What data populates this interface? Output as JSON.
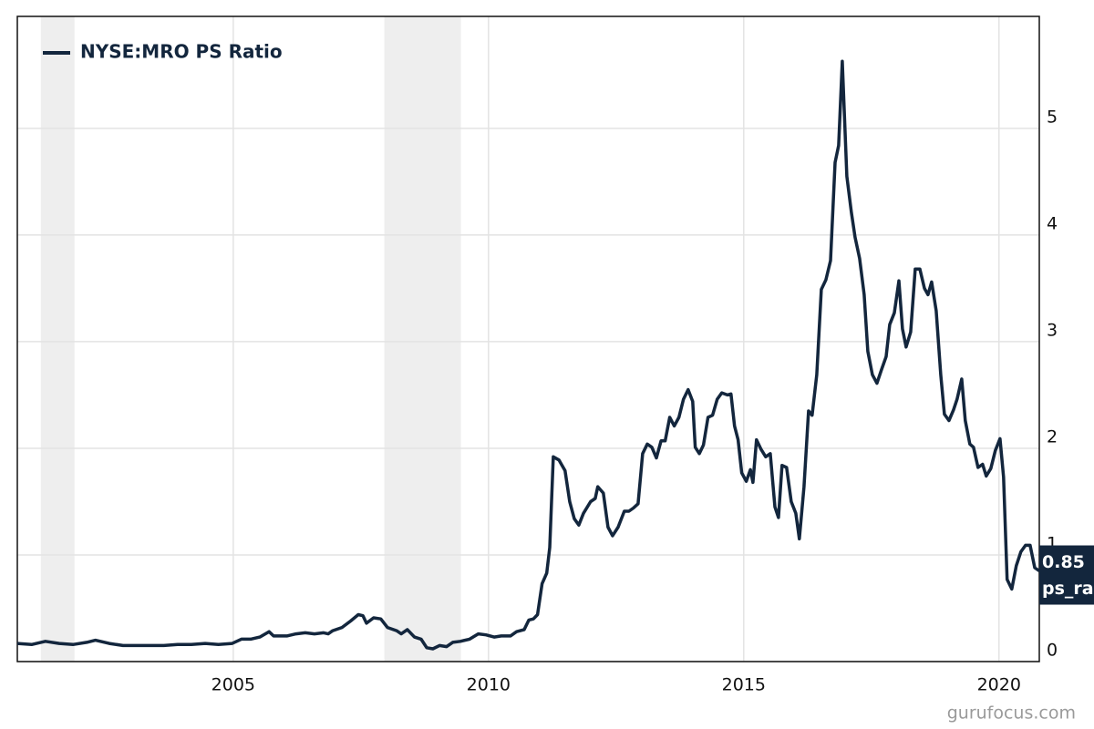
{
  "chart_data": {
    "type": "line",
    "series": [
      {
        "name": "NYSE:MRO PS Ratio",
        "color": "#13263d",
        "values": [
          0.17,
          0.16,
          0.19,
          0.17,
          0.16,
          0.18,
          0.2,
          0.17,
          0.15,
          0.15,
          0.15,
          0.15,
          0.16,
          0.16,
          0.17,
          0.16,
          0.17,
          0.21,
          0.21,
          0.23,
          0.28,
          0.24,
          0.24,
          0.26,
          0.27,
          0.26,
          0.27,
          0.26,
          0.29,
          0.32,
          0.38,
          0.44,
          0.43,
          0.36,
          0.41,
          0.4,
          0.32,
          0.29,
          0.26,
          0.3,
          0.23,
          0.21,
          0.13,
          0.12,
          0.15,
          0.14,
          0.18,
          0.19,
          0.21,
          0.26,
          0.25,
          0.23,
          0.24,
          0.24,
          0.28,
          0.3,
          0.39,
          0.4,
          0.44,
          0.73,
          0.83,
          1.07,
          1.92,
          1.89,
          1.79,
          1.5,
          1.34,
          1.28,
          1.39,
          1.5,
          1.53,
          1.64,
          1.58,
          1.26,
          1.18,
          1.26,
          1.41,
          1.41,
          1.44,
          1.48,
          1.95,
          2.04,
          2.01,
          1.91,
          2.07,
          2.07,
          2.29,
          2.21,
          2.29,
          2.46,
          2.55,
          2.44,
          2.01,
          1.95,
          2.03,
          2.29,
          2.31,
          2.46,
          2.52,
          2.5,
          2.51,
          2.21,
          2.08,
          1.77,
          1.69,
          1.8,
          1.68,
          2.08,
          1.99,
          1.92,
          1.95,
          1.45,
          1.35,
          1.84,
          1.82,
          1.5,
          1.39,
          1.15,
          1.64,
          2.35,
          2.31,
          2.69,
          3.49,
          3.58,
          3.76,
          4.68,
          4.84,
          5.63,
          4.55,
          4.21,
          3.98,
          3.78,
          3.44,
          2.91,
          2.69,
          2.61,
          2.74,
          2.86,
          3.16,
          3.27,
          3.57,
          3.12,
          2.95,
          3.09,
          3.68,
          3.68,
          3.5,
          3.44,
          3.56,
          3.29,
          2.69,
          2.32,
          2.26,
          2.36,
          2.46,
          2.65,
          2.26,
          2.04,
          2.01,
          1.82,
          1.85,
          1.74,
          1.81,
          1.98,
          2.09,
          1.73,
          0.77,
          0.68,
          0.9,
          1.03,
          1.09,
          1.09,
          0.88,
          0.85
        ]
      }
    ],
    "x": [
      2000.77,
      2001.05,
      2001.32,
      2001.59,
      2001.86,
      2002.13,
      2002.3,
      2002.57,
      2002.84,
      2003.11,
      2003.38,
      2003.64,
      2003.91,
      2004.18,
      2004.45,
      2004.71,
      2004.98,
      2005.16,
      2005.34,
      2005.52,
      2005.7,
      2005.79,
      2006.05,
      2006.23,
      2006.41,
      2006.59,
      2006.77,
      2006.86,
      2006.95,
      2007.13,
      2007.3,
      2007.45,
      2007.54,
      2007.61,
      2007.75,
      2007.89,
      2008.02,
      2008.2,
      2008.29,
      2008.41,
      2008.55,
      2008.68,
      2008.79,
      2008.91,
      2009.04,
      2009.18,
      2009.3,
      2009.45,
      2009.63,
      2009.8,
      2009.95,
      2010.11,
      2010.25,
      2010.43,
      2010.55,
      2010.7,
      2010.79,
      2010.88,
      2010.96,
      2011.05,
      2011.14,
      2011.2,
      2011.27,
      2011.38,
      2011.5,
      2011.59,
      2011.68,
      2011.77,
      2011.86,
      2012.0,
      2012.09,
      2012.14,
      2012.25,
      2012.34,
      2012.43,
      2012.54,
      2012.66,
      2012.75,
      2012.84,
      2012.93,
      2013.02,
      2013.11,
      2013.2,
      2013.29,
      2013.38,
      2013.46,
      2013.55,
      2013.64,
      2013.73,
      2013.82,
      2013.91,
      2014.0,
      2014.05,
      2014.13,
      2014.21,
      2014.3,
      2014.39,
      2014.48,
      2014.57,
      2014.68,
      2014.75,
      2014.82,
      2014.89,
      2014.96,
      2015.05,
      2015.13,
      2015.18,
      2015.25,
      2015.34,
      2015.43,
      2015.52,
      2015.61,
      2015.68,
      2015.75,
      2015.84,
      2015.93,
      2016.02,
      2016.09,
      2016.18,
      2016.27,
      2016.34,
      2016.43,
      2016.52,
      2016.61,
      2016.7,
      2016.79,
      2016.86,
      2016.93,
      2017.02,
      2017.11,
      2017.18,
      2017.27,
      2017.36,
      2017.43,
      2017.52,
      2017.61,
      2017.7,
      2017.79,
      2017.86,
      2017.95,
      2018.04,
      2018.11,
      2018.18,
      2018.27,
      2018.36,
      2018.45,
      2018.54,
      2018.61,
      2018.68,
      2018.77,
      2018.86,
      2018.93,
      2019.02,
      2019.11,
      2019.18,
      2019.27,
      2019.34,
      2019.43,
      2019.5,
      2019.59,
      2019.68,
      2019.75,
      2019.84,
      2019.93,
      2020.02,
      2020.09,
      2020.16,
      2020.25,
      2020.34,
      2020.43,
      2020.52,
      2020.61,
      2020.7,
      2020.79
    ],
    "xlim": [
      2000.77,
      2020.79
    ],
    "xticks": [
      2005,
      2010,
      2015,
      2020
    ],
    "ylim": [
      0,
      6.05
    ],
    "yticks": [
      0,
      1,
      2,
      3,
      4,
      5
    ],
    "grid": true,
    "recession_shading": [
      [
        2001.23,
        2001.89
      ],
      [
        2007.96,
        2009.46
      ]
    ],
    "last_value_label": 0.85,
    "last_value_name": "ps_ra",
    "watermark": "gurufocus.com"
  }
}
